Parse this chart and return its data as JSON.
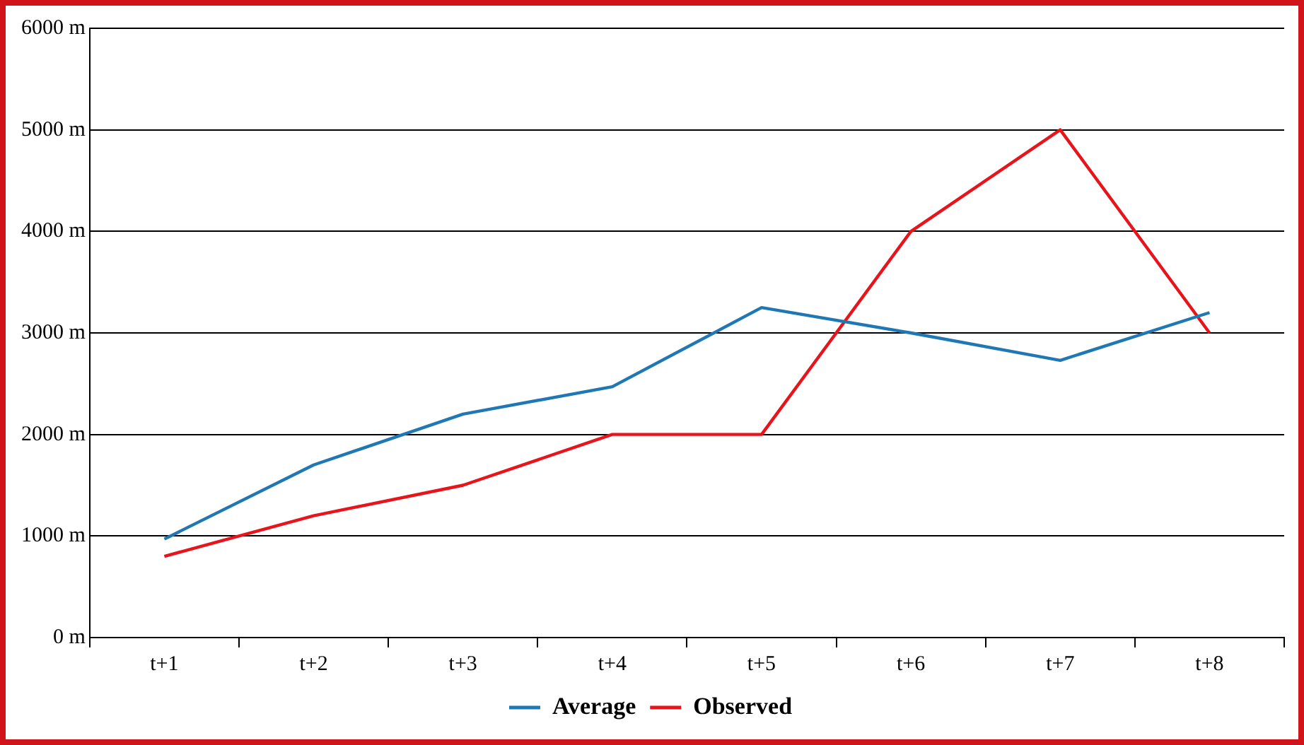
{
  "chart_data": {
    "type": "line",
    "categories": [
      "t+1",
      "t+2",
      "t+3",
      "t+4",
      "t+5",
      "t+6",
      "t+7",
      "t+8"
    ],
    "series": [
      {
        "name": "Average",
        "color": "#1f77b4",
        "values": [
          970,
          1700,
          2200,
          2470,
          3250,
          3000,
          2730,
          3200
        ]
      },
      {
        "name": "Observed",
        "color": "#e8141c",
        "values": [
          800,
          1200,
          1500,
          2000,
          2000,
          4000,
          5000,
          3000
        ]
      }
    ],
    "ylim": [
      0,
      6000
    ],
    "yticks": [
      {
        "value": 0,
        "label": "0 m"
      },
      {
        "value": 1000,
        "label": "1000 m"
      },
      {
        "value": 2000,
        "label": "2000 m"
      },
      {
        "value": 3000,
        "label": "3000 m"
      },
      {
        "value": 4000,
        "label": "4000 m"
      },
      {
        "value": 5000,
        "label": "5000 m"
      },
      {
        "value": 6000,
        "label": "6000 m"
      }
    ],
    "grid": "y",
    "legend": "bottom",
    "marker": "none",
    "line_style": "solid"
  }
}
